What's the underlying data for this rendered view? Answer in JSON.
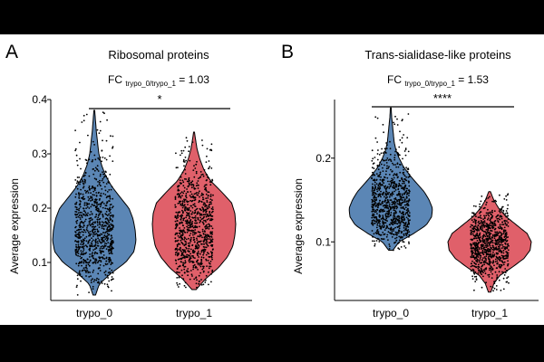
{
  "chart_data": [
    {
      "type": "violin",
      "panel_label": "A",
      "title": "Ribosomal proteins",
      "fc": {
        "prefix": "FC",
        "subscript": "trypo_0/trypo_1",
        "suffix": "= 1.03"
      },
      "significance": "*",
      "xlabel": "",
      "ylabel": "Average expression",
      "ylim": [
        0.03,
        0.4
      ],
      "yticks": [
        0.1,
        0.2,
        0.3,
        0.4
      ],
      "categories": [
        "trypo_0",
        "trypo_1"
      ],
      "series": [
        {
          "name": "trypo_0",
          "color": "#5b86b5",
          "min": 0.04,
          "max": 0.38,
          "density_y": [
            0.04,
            0.06,
            0.08,
            0.1,
            0.12,
            0.14,
            0.16,
            0.18,
            0.2,
            0.22,
            0.24,
            0.26,
            0.28,
            0.3,
            0.32,
            0.34,
            0.36,
            0.38
          ],
          "density_w": [
            0.03,
            0.12,
            0.4,
            0.75,
            0.95,
            1.0,
            0.98,
            0.93,
            0.83,
            0.62,
            0.42,
            0.27,
            0.17,
            0.11,
            0.08,
            0.05,
            0.03,
            0.01
          ]
        },
        {
          "name": "trypo_1",
          "color": "#e0606a",
          "min": 0.05,
          "max": 0.34,
          "density_y": [
            0.05,
            0.07,
            0.09,
            0.11,
            0.13,
            0.15,
            0.17,
            0.19,
            0.21,
            0.23,
            0.25,
            0.27,
            0.29,
            0.31,
            0.34
          ],
          "density_w": [
            0.05,
            0.28,
            0.58,
            0.8,
            0.93,
            0.98,
            1.0,
            0.98,
            0.9,
            0.66,
            0.4,
            0.24,
            0.14,
            0.07,
            0.01
          ]
        }
      ]
    },
    {
      "type": "violin",
      "panel_label": "B",
      "title": "Trans-sialidase-like proteins",
      "fc": {
        "prefix": "FC",
        "subscript": "trypo_0/trypo_1",
        "suffix": "= 1.53"
      },
      "significance": "****",
      "xlabel": "",
      "ylabel": "Average expression",
      "ylim": [
        0.03,
        0.27
      ],
      "yticks": [
        0.1,
        0.2
      ],
      "categories": [
        "trypo_0",
        "trypo_1"
      ],
      "series": [
        {
          "name": "trypo_0",
          "color": "#5b86b5",
          "min": 0.09,
          "max": 0.26,
          "density_y": [
            0.09,
            0.1,
            0.11,
            0.12,
            0.13,
            0.14,
            0.15,
            0.16,
            0.17,
            0.18,
            0.19,
            0.2,
            0.21,
            0.22,
            0.23,
            0.24,
            0.25,
            0.26
          ],
          "density_w": [
            0.05,
            0.2,
            0.55,
            0.85,
            0.98,
            1.0,
            0.92,
            0.8,
            0.62,
            0.45,
            0.3,
            0.2,
            0.12,
            0.08,
            0.06,
            0.04,
            0.02,
            0.01
          ]
        },
        {
          "name": "trypo_1",
          "color": "#e0606a",
          "min": 0.04,
          "max": 0.16,
          "density_y": [
            0.04,
            0.05,
            0.06,
            0.07,
            0.08,
            0.09,
            0.1,
            0.11,
            0.12,
            0.13,
            0.14,
            0.15,
            0.16
          ],
          "density_w": [
            0.03,
            0.1,
            0.25,
            0.55,
            0.82,
            0.97,
            1.0,
            0.9,
            0.65,
            0.4,
            0.22,
            0.1,
            0.02
          ]
        }
      ]
    }
  ]
}
